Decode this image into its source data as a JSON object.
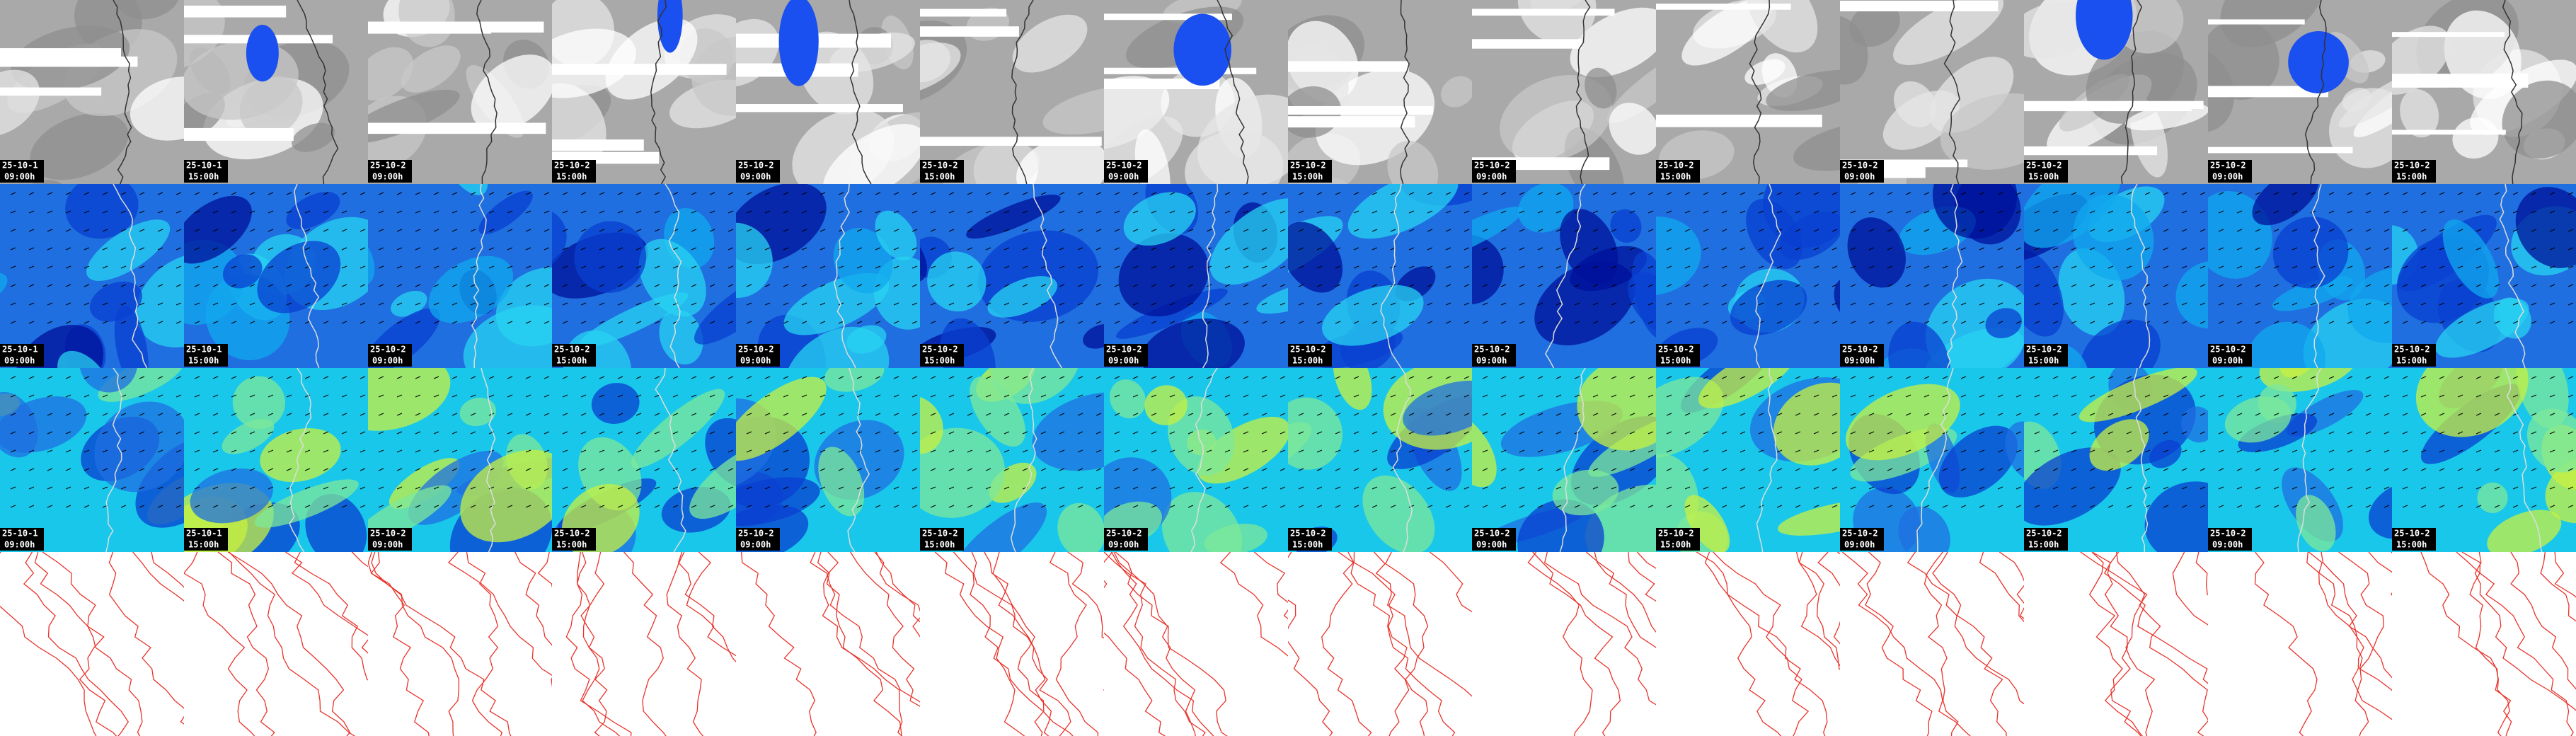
{
  "columns": [
    {
      "date": "25-10-1",
      "time": "09:00h"
    },
    {
      "date": "25-10-1",
      "time": "15:00h"
    },
    {
      "date": "25-10-2",
      "time": "09:00h"
    },
    {
      "date": "25-10-2",
      "time": "15:00h"
    },
    {
      "date": "25-10-2",
      "time": "09:00h"
    },
    {
      "date": "25-10-2",
      "time": "15:00h"
    },
    {
      "date": "25-10-2",
      "time": "09:00h"
    },
    {
      "date": "25-10-2",
      "time": "15:00h"
    },
    {
      "date": "25-10-2",
      "time": "09:00h"
    },
    {
      "date": "25-10-2",
      "time": "15:00h"
    },
    {
      "date": "25-10-2",
      "time": "09:00h"
    },
    {
      "date": "25-10-2",
      "time": "15:00h"
    },
    {
      "date": "25-10-2",
      "time": "09:00h"
    },
    {
      "date": "25-10-2",
      "time": "15:00h"
    }
  ]
}
